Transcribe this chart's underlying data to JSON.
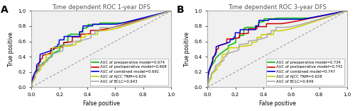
{
  "panel_A": {
    "title": "Time dependent ROC 1-year DFS",
    "xlabel": "False positive",
    "ylabel": "True positive",
    "legend": [
      {
        "label": "AUC of preoperative model=0.674",
        "color": "#00BB00"
      },
      {
        "label": "AUC of postoperative model=0.668",
        "color": "#CC0000"
      },
      {
        "label": "AUC of combined model=0.691",
        "color": "#0000DD"
      },
      {
        "label": "AUC of AJCC TNM=0.629",
        "color": "#CCCC00"
      },
      {
        "label": "AUC of BCLC=0.643",
        "color": "#AAAAAA"
      }
    ],
    "aucs": [
      0.674,
      0.668,
      0.691,
      0.629,
      0.643
    ],
    "seeds": [
      7,
      3,
      12,
      25,
      18
    ]
  },
  "panel_B": {
    "title": "Time dependent ROC 3-year DFS",
    "xlabel": "False positive",
    "ylabel": "True positive",
    "legend": [
      {
        "label": "AUC of preoperative model=0.734",
        "color": "#00BB00"
      },
      {
        "label": "AUC of postoperative model=0.741",
        "color": "#CC0000"
      },
      {
        "label": "AUC of combined model=0.747",
        "color": "#0000DD"
      },
      {
        "label": "AUC of AJCC TNM=0.628",
        "color": "#CCCC00"
      },
      {
        "label": "AUC of BCLC=0.649",
        "color": "#AAAAAA"
      }
    ],
    "aucs": [
      0.734,
      0.741,
      0.747,
      0.628,
      0.649
    ],
    "seeds": [
      7,
      3,
      12,
      25,
      18
    ]
  },
  "bg_color": "#F0F0F0",
  "legend_fontsize": 3.8,
  "tick_fontsize": 5.0,
  "axis_label_fontsize": 5.5,
  "title_fontsize": 6.0,
  "line_width": 1.1
}
